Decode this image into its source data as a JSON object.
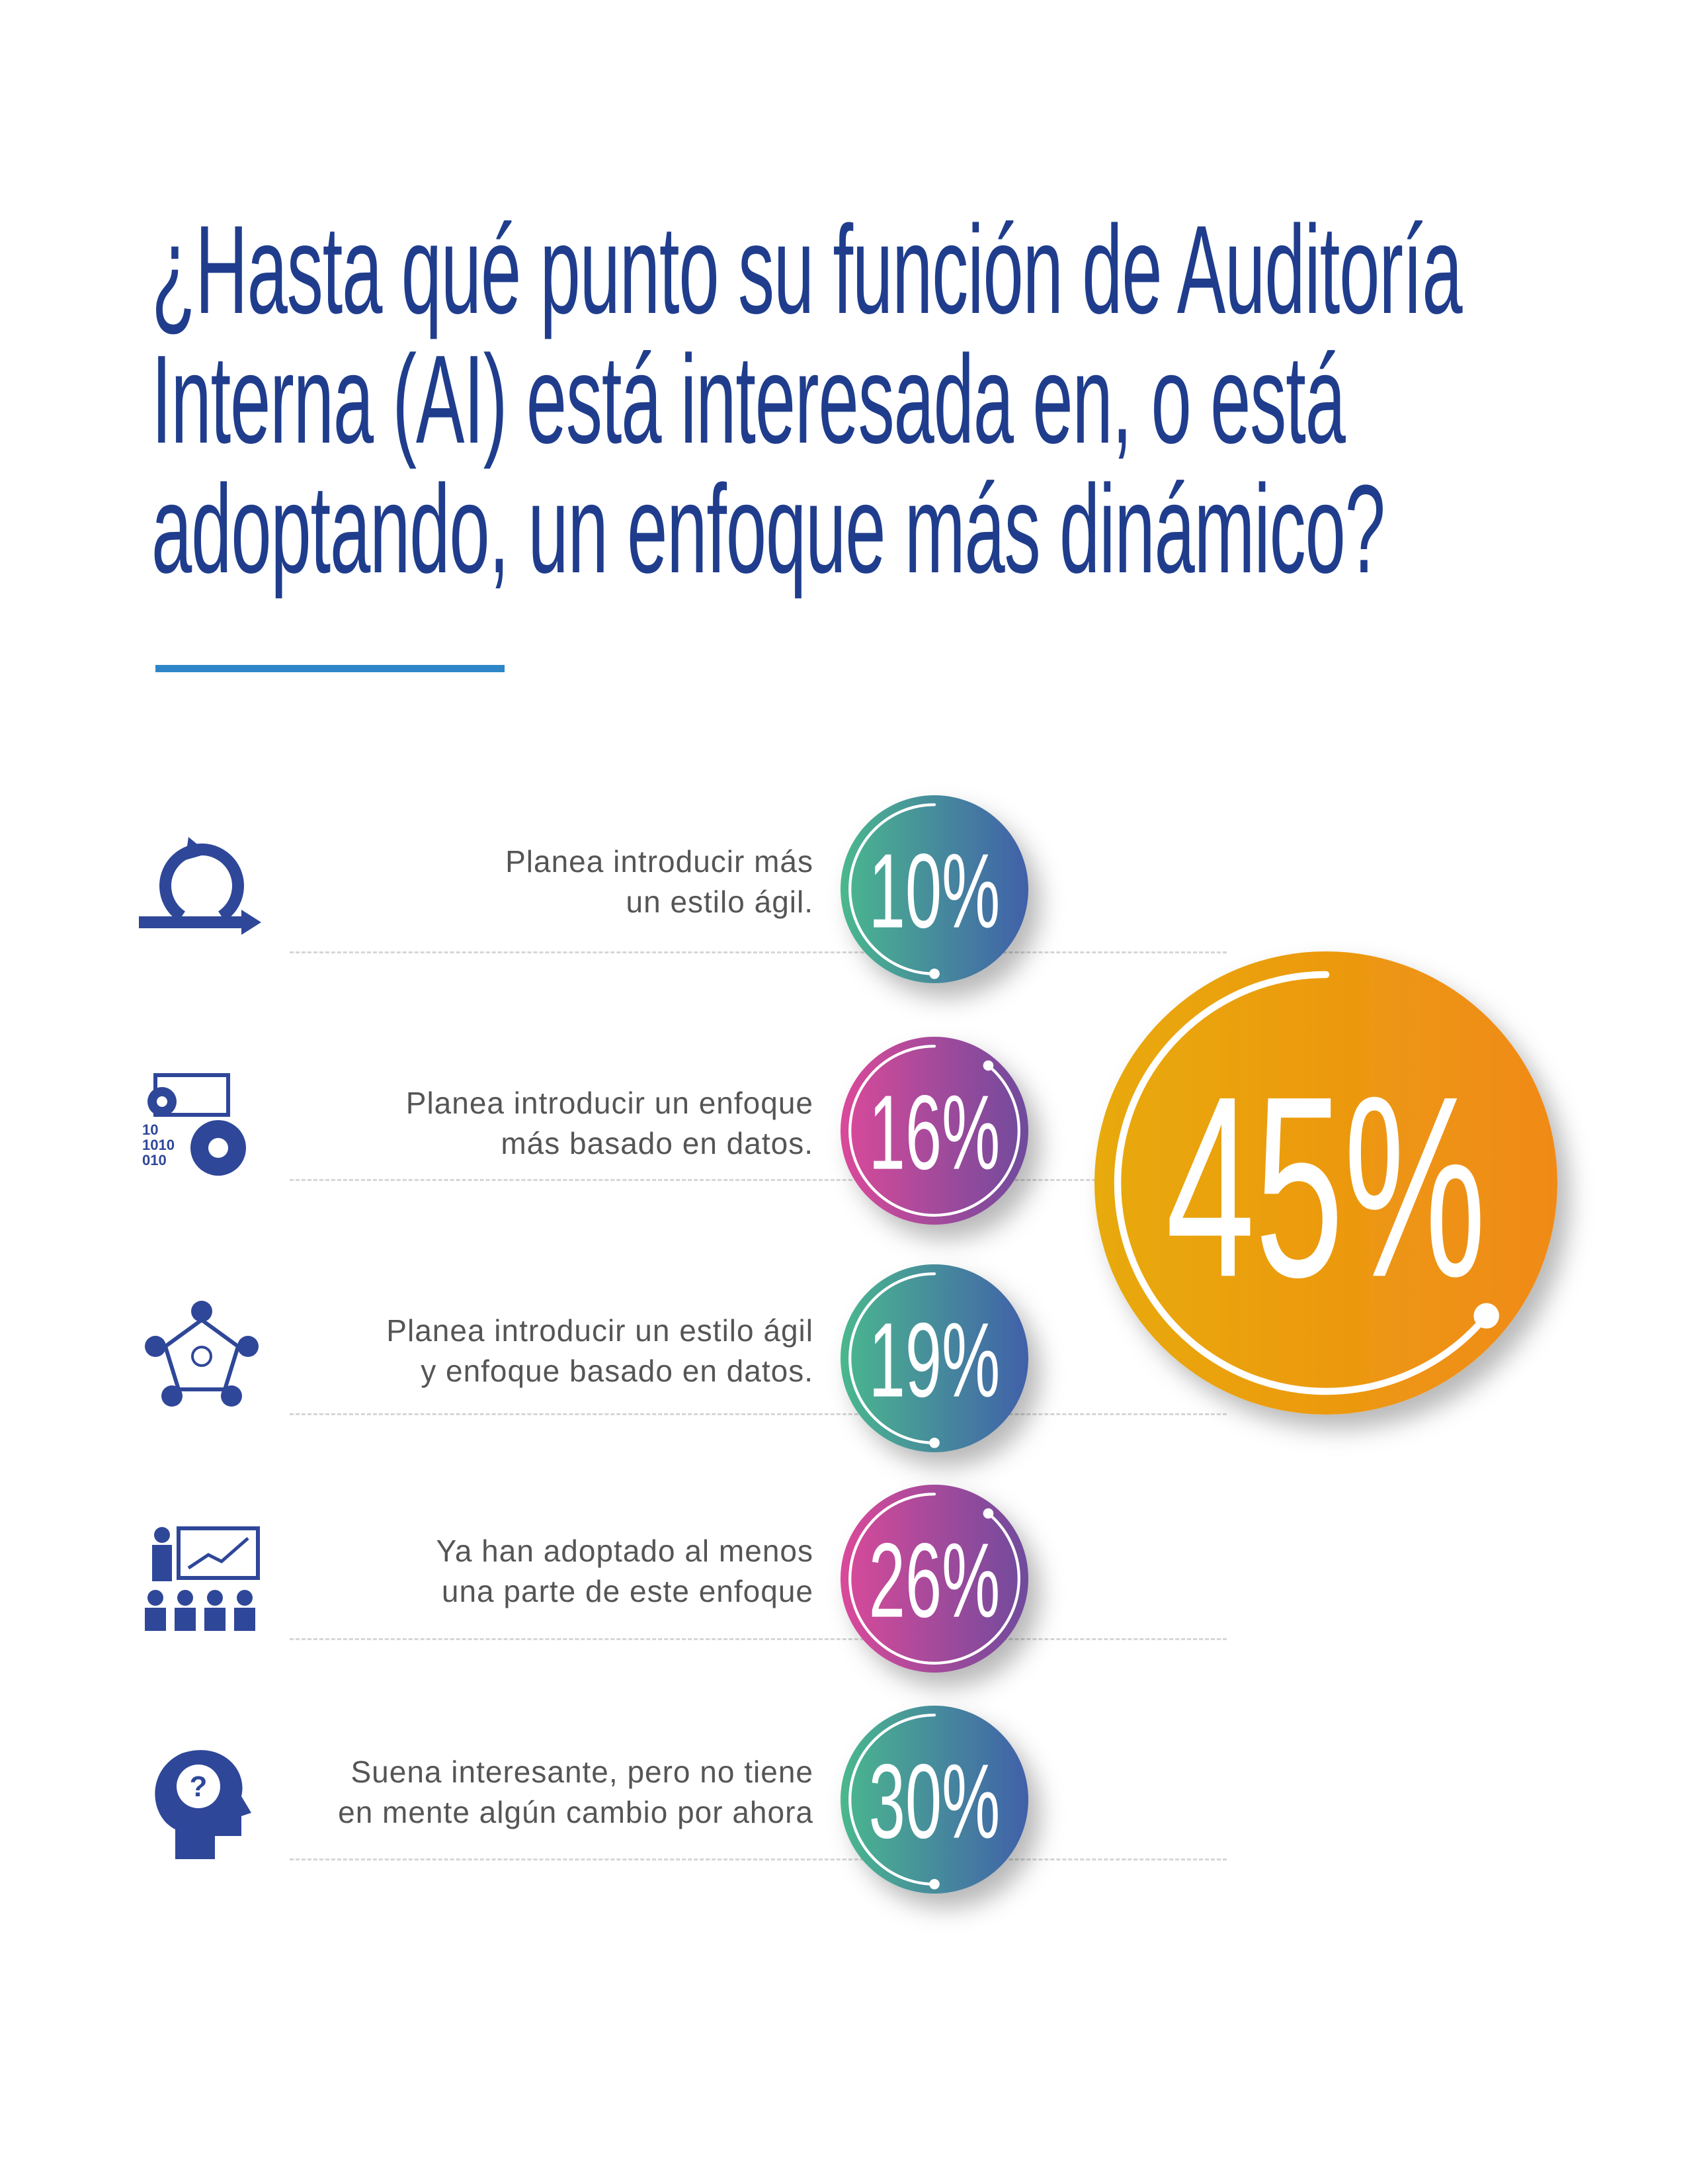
{
  "title_lines": [
    "¿Hasta qué punto su función de Auditoría",
    "Interna (AI) está interesada en, o está",
    "adoptando, un enfoque más dinámico?"
  ],
  "colors": {
    "title": "#1f3d8c",
    "rule": "#2e86c8",
    "icon": "#2f4799",
    "teal_blue": [
      "#4bb88e",
      "#4160a9"
    ],
    "pink_purple": [
      "#db4a9a",
      "#6f4b9c"
    ],
    "orange": [
      "#e8aa08",
      "#f08a18"
    ]
  },
  "items": [
    {
      "lines": [
        "Planea introducir más",
        "un estilo ágil."
      ],
      "value": "10%",
      "icon": "agile-cycle-icon",
      "palette": "teal_blue"
    },
    {
      "lines": [
        "Planea introducir un enfoque",
        "más basado en datos."
      ],
      "value": "16%",
      "icon": "data-gears-icon",
      "palette": "pink_purple"
    },
    {
      "lines": [
        "Planea introducir un estilo ágil",
        "y enfoque basado en datos."
      ],
      "value": "19%",
      "icon": "team-network-icon",
      "palette": "teal_blue"
    },
    {
      "lines": [
        "Ya han adoptado al menos",
        "una parte de este enfoque"
      ],
      "value": "26%",
      "icon": "presentation-audience-icon",
      "palette": "pink_purple"
    },
    {
      "lines": [
        "Suena interesante, pero no tiene",
        "en mente algún cambio por ahora"
      ],
      "value": "30%",
      "icon": "head-question-icon",
      "palette": "teal_blue"
    }
  ],
  "total": {
    "value": "45%",
    "palette": "orange"
  },
  "chart_data": {
    "type": "bar",
    "categories": [
      "Planea introducir más un estilo ágil.",
      "Planea introducir un enfoque más basado en datos.",
      "Planea introducir un estilo ágil y enfoque basado en datos.",
      "Ya han adoptado al menos una parte de este enfoque",
      "Suena interesante, pero no tiene en mente algún cambio por ahora"
    ],
    "values": [
      10,
      16,
      19,
      26,
      30
    ],
    "highlight": {
      "value": 45,
      "groups": [
        0,
        1,
        2
      ]
    },
    "unit": "%"
  }
}
